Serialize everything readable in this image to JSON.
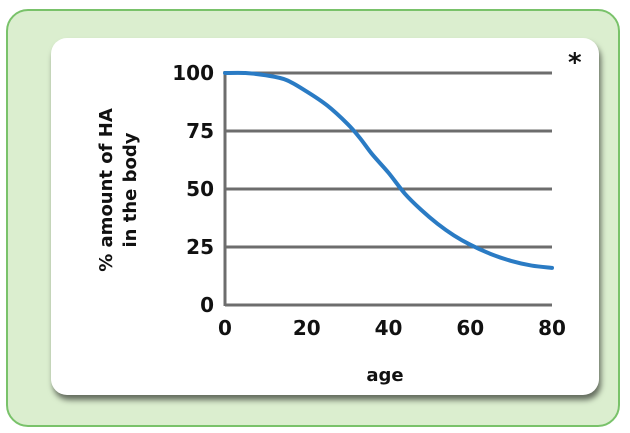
{
  "chart_data": {
    "type": "line",
    "xlabel": "age",
    "ylabel_lines": [
      "% amount of HA",
      "in the body"
    ],
    "annotation": "*",
    "xlim": [
      0,
      80
    ],
    "ylim": [
      0,
      100
    ],
    "x_ticks": [
      "0",
      "20",
      "40",
      "60",
      "80"
    ],
    "y_ticks": [
      "0",
      "25",
      "50",
      "75",
      "100"
    ],
    "grid": "horizontal",
    "series": [
      {
        "color": "#2a7bc4",
        "x": [
          0,
          5,
          10,
          15,
          20,
          25,
          30,
          33,
          36,
          40,
          44,
          48,
          52,
          56,
          60,
          65,
          70,
          75,
          80
        ],
        "y": [
          100,
          100,
          99,
          97,
          92,
          86,
          78,
          72,
          65,
          57,
          48,
          41,
          35,
          30,
          26,
          22,
          19,
          17,
          16
        ]
      }
    ]
  }
}
